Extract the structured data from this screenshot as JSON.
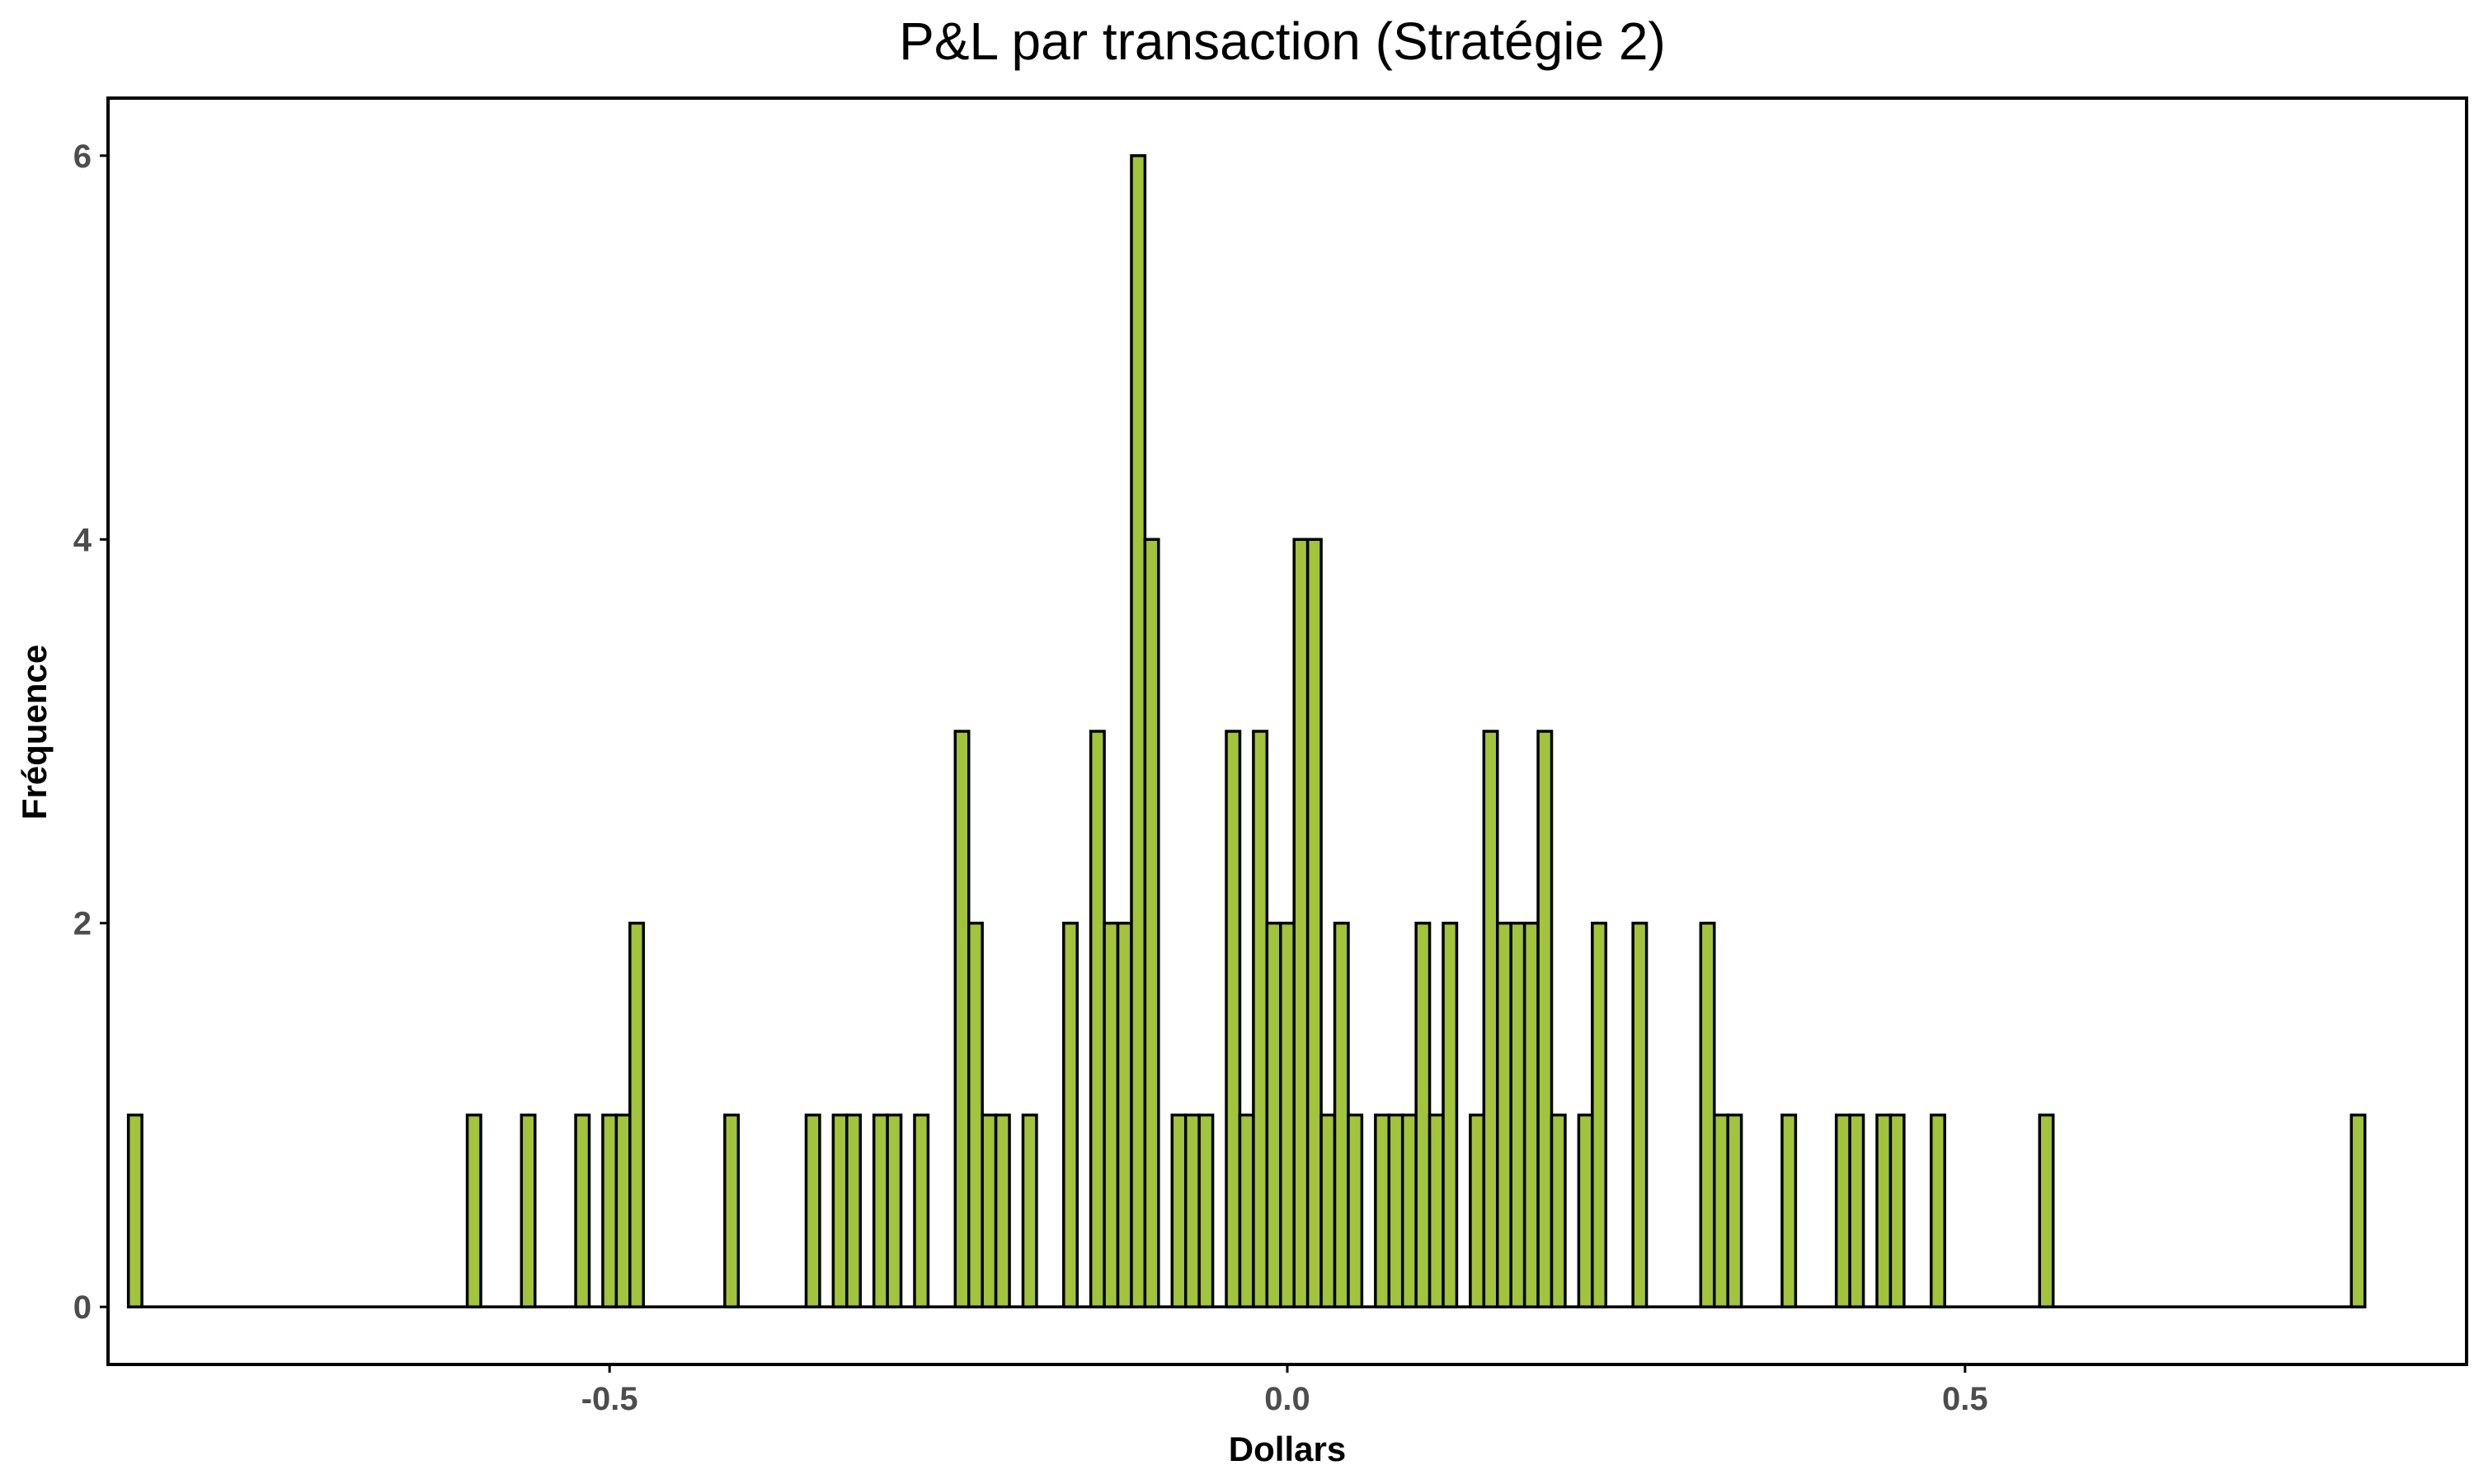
{
  "chart_data": {
    "type": "bar",
    "title": "P&L par transaction (Stratégie 2)",
    "xlabel": "Dollars",
    "ylabel": "Fréquence",
    "xlim": [
      -0.87,
      0.87
    ],
    "ylim": [
      -0.3,
      6.3
    ],
    "bin_width": 0.01,
    "xticks": [
      {
        "value": -0.5,
        "label": "-0.5"
      },
      {
        "value": 0.0,
        "label": "0.0"
      },
      {
        "value": 0.5,
        "label": "0.5"
      }
    ],
    "yticks": [
      {
        "value": 0,
        "label": "0"
      },
      {
        "value": 2,
        "label": "2"
      },
      {
        "value": 4,
        "label": "4"
      },
      {
        "value": 6,
        "label": "6"
      }
    ],
    "bins": [
      {
        "x": -0.85,
        "count": 1
      },
      {
        "x": -0.6,
        "count": 1
      },
      {
        "x": -0.56,
        "count": 1
      },
      {
        "x": -0.52,
        "count": 1
      },
      {
        "x": -0.5,
        "count": 1
      },
      {
        "x": -0.49,
        "count": 1
      },
      {
        "x": -0.48,
        "count": 2
      },
      {
        "x": -0.41,
        "count": 1
      },
      {
        "x": -0.35,
        "count": 1
      },
      {
        "x": -0.33,
        "count": 1
      },
      {
        "x": -0.32,
        "count": 1
      },
      {
        "x": -0.3,
        "count": 1
      },
      {
        "x": -0.29,
        "count": 1
      },
      {
        "x": -0.27,
        "count": 1
      },
      {
        "x": -0.24,
        "count": 3
      },
      {
        "x": -0.23,
        "count": 2
      },
      {
        "x": -0.22,
        "count": 1
      },
      {
        "x": -0.21,
        "count": 1
      },
      {
        "x": -0.19,
        "count": 1
      },
      {
        "x": -0.16,
        "count": 2
      },
      {
        "x": -0.14,
        "count": 3
      },
      {
        "x": -0.13,
        "count": 2
      },
      {
        "x": -0.12,
        "count": 2
      },
      {
        "x": -0.11,
        "count": 6
      },
      {
        "x": -0.1,
        "count": 4
      },
      {
        "x": -0.08,
        "count": 1
      },
      {
        "x": -0.07,
        "count": 1
      },
      {
        "x": -0.06,
        "count": 1
      },
      {
        "x": -0.04,
        "count": 3
      },
      {
        "x": -0.03,
        "count": 1
      },
      {
        "x": -0.02,
        "count": 3
      },
      {
        "x": -0.01,
        "count": 2
      },
      {
        "x": 0.0,
        "count": 2
      },
      {
        "x": 0.01,
        "count": 4
      },
      {
        "x": 0.02,
        "count": 4
      },
      {
        "x": 0.03,
        "count": 1
      },
      {
        "x": 0.04,
        "count": 2
      },
      {
        "x": 0.05,
        "count": 1
      },
      {
        "x": 0.07,
        "count": 1
      },
      {
        "x": 0.08,
        "count": 1
      },
      {
        "x": 0.09,
        "count": 1
      },
      {
        "x": 0.1,
        "count": 2
      },
      {
        "x": 0.11,
        "count": 1
      },
      {
        "x": 0.12,
        "count": 2
      },
      {
        "x": 0.14,
        "count": 1
      },
      {
        "x": 0.15,
        "count": 3
      },
      {
        "x": 0.16,
        "count": 2
      },
      {
        "x": 0.17,
        "count": 2
      },
      {
        "x": 0.18,
        "count": 2
      },
      {
        "x": 0.19,
        "count": 3
      },
      {
        "x": 0.2,
        "count": 1
      },
      {
        "x": 0.22,
        "count": 1
      },
      {
        "x": 0.23,
        "count": 2
      },
      {
        "x": 0.26,
        "count": 2
      },
      {
        "x": 0.31,
        "count": 2
      },
      {
        "x": 0.32,
        "count": 1
      },
      {
        "x": 0.33,
        "count": 1
      },
      {
        "x": 0.37,
        "count": 1
      },
      {
        "x": 0.41,
        "count": 1
      },
      {
        "x": 0.42,
        "count": 1
      },
      {
        "x": 0.44,
        "count": 1
      },
      {
        "x": 0.45,
        "count": 1
      },
      {
        "x": 0.48,
        "count": 1
      },
      {
        "x": 0.56,
        "count": 1
      },
      {
        "x": 0.79,
        "count": 1
      }
    ],
    "grid": false,
    "legend": "none",
    "colors": {
      "bar_fill": "#a2c33c",
      "bar_edge": "#000000",
      "tick_text": "#4d4d4d",
      "background": "#ffffff"
    }
  }
}
